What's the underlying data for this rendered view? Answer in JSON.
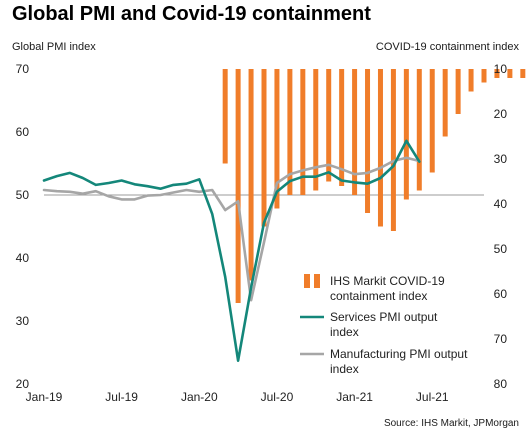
{
  "title": "Global PMI and Covid-19 containment",
  "source": "Source: IHS Markit, JPMorgan",
  "colors": {
    "containment": "#f07d2a",
    "services": "#14877a",
    "manufacturing": "#a6a6a6",
    "reference_line": "#9b9b9b"
  },
  "chart_data": {
    "type": "bar",
    "title": "Global PMI and Covid-19 containment",
    "ylabel_left": "Global PMI index",
    "ylabel_right": "COVID-19 containment index",
    "yleft_ticks": [
      "70",
      "60",
      "50",
      "40",
      "30",
      "20"
    ],
    "yleft_range": [
      20,
      70
    ],
    "yright_ticks": [
      "10",
      "20",
      "30",
      "40",
      "50",
      "60",
      "70",
      "80"
    ],
    "yright_range": [
      10,
      80
    ],
    "yright_inverted": true,
    "x_ticks": [
      "Jan-19",
      "Jul-19",
      "Jan-20",
      "Jul-20",
      "Jan-21",
      "Jul-21"
    ],
    "x_tick_index": [
      0,
      6,
      12,
      18,
      24,
      30
    ],
    "months": [
      "Jan-19",
      "Feb-19",
      "Mar-19",
      "Apr-19",
      "May-19",
      "Jun-19",
      "Jul-19",
      "Aug-19",
      "Sep-19",
      "Oct-19",
      "Nov-19",
      "Dec-19",
      "Jan-20",
      "Feb-20",
      "Mar-20",
      "Apr-20",
      "May-20",
      "Jun-20",
      "Jul-20",
      "Aug-20",
      "Sep-20",
      "Oct-20",
      "Nov-20",
      "Dec-20",
      "Jan-21",
      "Feb-21",
      "Mar-21",
      "Apr-21",
      "May-21",
      "Jun-21",
      "Jul-21",
      "Aug-21",
      "Sep-21",
      "Oct-21",
      "Nov-21"
    ],
    "reference_line_value": 50,
    "series": [
      {
        "name": "IHS Markit COVID-19 containment index",
        "kind": "bar",
        "axis": "right",
        "start_index": 14,
        "values": [
          31,
          62,
          57,
          45,
          41,
          38,
          38,
          37,
          35,
          36,
          38,
          42,
          45,
          46,
          39,
          37,
          33,
          25,
          20,
          15,
          13,
          12,
          12,
          12
        ]
      },
      {
        "name": "Services PMI output index",
        "kind": "line",
        "axis": "left",
        "start_index": 0,
        "values": [
          52.3,
          53.0,
          53.5,
          52.7,
          51.6,
          51.9,
          52.3,
          51.7,
          51.4,
          51.0,
          51.6,
          51.8,
          52.5,
          47.0,
          37.0,
          23.7,
          35.3,
          45.6,
          50.5,
          52.2,
          52.9,
          52.9,
          53.6,
          52.3,
          52.0,
          51.8,
          52.7,
          54.6,
          58.6,
          55.3
        ]
      },
      {
        "name": "Manufacturing PMI output index",
        "kind": "line",
        "axis": "left",
        "start_index": 0,
        "values": [
          50.8,
          50.6,
          50.5,
          50.2,
          50.6,
          49.8,
          49.3,
          49.3,
          49.9,
          50.0,
          50.4,
          50.8,
          50.5,
          50.8,
          47.6,
          49.0,
          33.3,
          42.5,
          51.9,
          53.3,
          53.9,
          54.4,
          54.8,
          54.1,
          53.3,
          53.5,
          54.3,
          55.4,
          55.9,
          55.4
        ]
      }
    ]
  }
}
